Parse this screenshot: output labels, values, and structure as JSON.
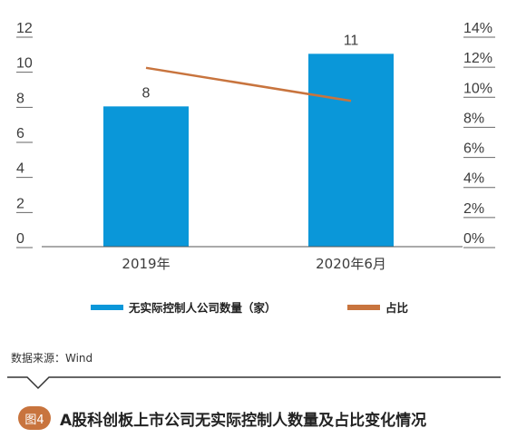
{
  "chart_data": {
    "type": "bar+line",
    "categories": [
      "2019年",
      "2020年6月"
    ],
    "series": [
      {
        "name": "无实际控制人公司数量（家）",
        "type": "bar",
        "axis": "left",
        "values": [
          8,
          11
        ],
        "color": "#0a97d9"
      },
      {
        "name": "占比",
        "type": "line",
        "axis": "right",
        "values": [
          11.9,
          9.7
        ],
        "color": "#c8743e"
      }
    ],
    "data_labels": [
      "8",
      "11"
    ],
    "left_axis": {
      "range": [
        0,
        12
      ],
      "ticks": [
        "0",
        "2",
        "4",
        "6",
        "8",
        "10",
        "12"
      ]
    },
    "right_axis": {
      "range": [
        0,
        14
      ],
      "ticks": [
        "0%",
        "2%",
        "4%",
        "6%",
        "8%",
        "10%",
        "12%",
        "14%"
      ]
    },
    "grid": false,
    "legend_position": "bottom"
  },
  "legend": {
    "bar_label": "无实际控制人公司数量（家）",
    "line_label": "占比",
    "bar_color": "#0a97d9",
    "line_color": "#c8743e"
  },
  "source": "数据来源：Wind",
  "caption": {
    "badge": "图4",
    "title": "A股科创板上市公司无实际控制人数量及占比变化情况"
  }
}
